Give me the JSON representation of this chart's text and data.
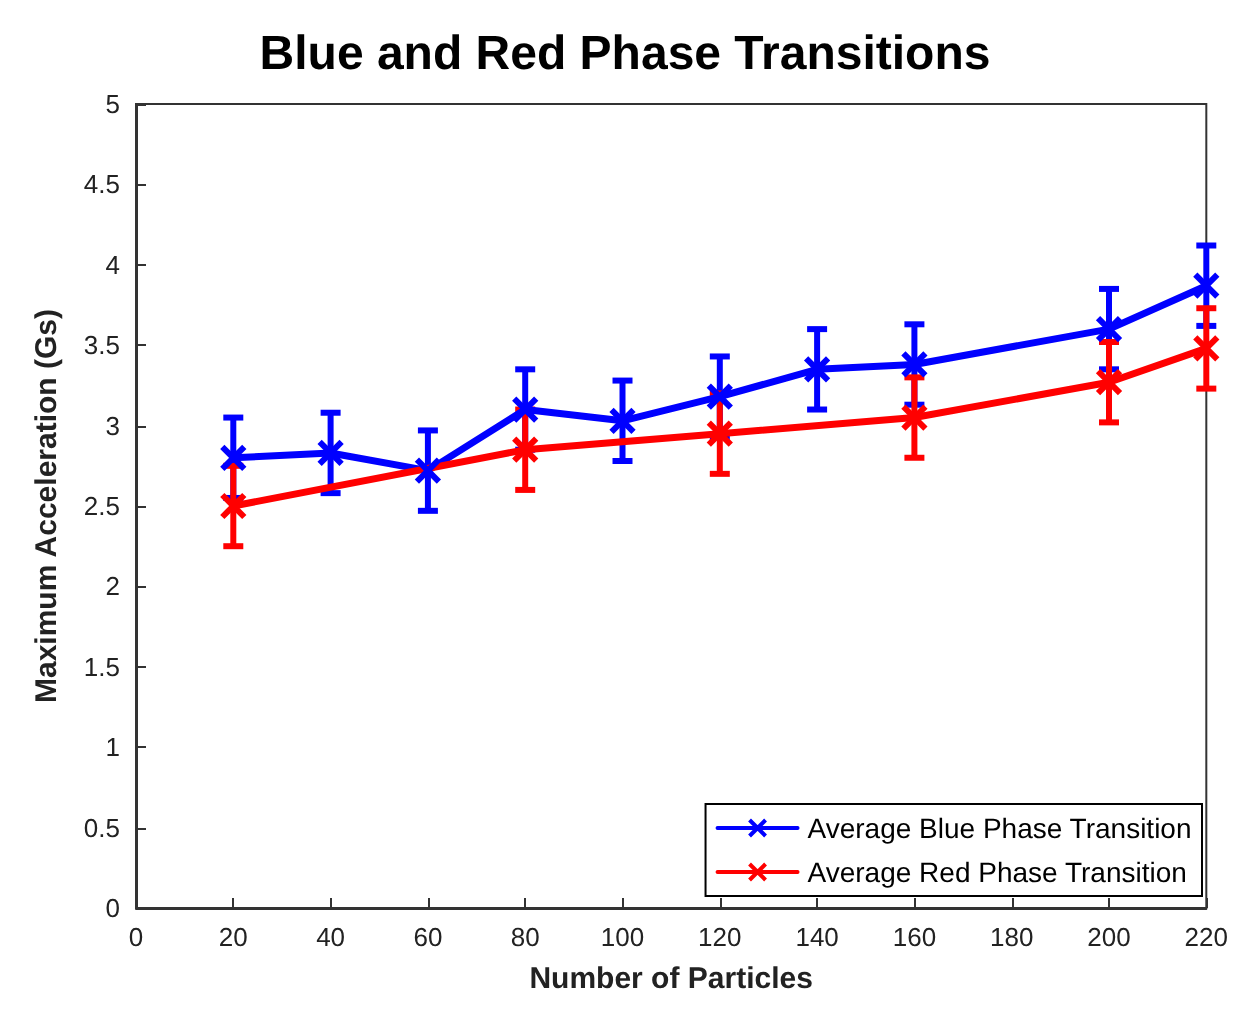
{
  "chart_data": {
    "type": "line",
    "title": "Blue and Red Phase Transitions",
    "xlabel": "Number of Particles",
    "ylabel": "Maximum Acceleration (Gs)",
    "xlim": [
      0,
      220
    ],
    "xticks": [
      0,
      20,
      40,
      60,
      80,
      100,
      120,
      140,
      160,
      180,
      200,
      220
    ],
    "ylim": [
      0,
      5
    ],
    "yticks": [
      0,
      0.5,
      1,
      1.5,
      2,
      2.5,
      3,
      3.5,
      4,
      4.5,
      5
    ],
    "grid": false,
    "legend": "bottom right",
    "marker": "cross",
    "line_style": "solid",
    "series": [
      {
        "name": "Average Blue Phase Transition",
        "color": "#0000ff",
        "x": [
          20,
          40,
          60,
          80,
          100,
          120,
          140,
          160,
          200,
          220
        ],
        "values": [
          2.8,
          2.83,
          2.72,
          3.1,
          3.03,
          3.18,
          3.35,
          3.38,
          3.6,
          3.87
        ],
        "errors": [
          0.25,
          0.25,
          0.25,
          0.25,
          0.25,
          0.25,
          0.25,
          0.25,
          0.25,
          0.25
        ]
      },
      {
        "name": "Average Red Phase Transition",
        "color": "#ff0000",
        "x": [
          20,
          80,
          120,
          160,
          200,
          220
        ],
        "values": [
          2.5,
          2.85,
          2.95,
          3.05,
          3.27,
          3.48
        ],
        "errors": [
          0.25,
          0.25,
          0.25,
          0.25,
          0.25,
          0.25
        ]
      }
    ]
  }
}
